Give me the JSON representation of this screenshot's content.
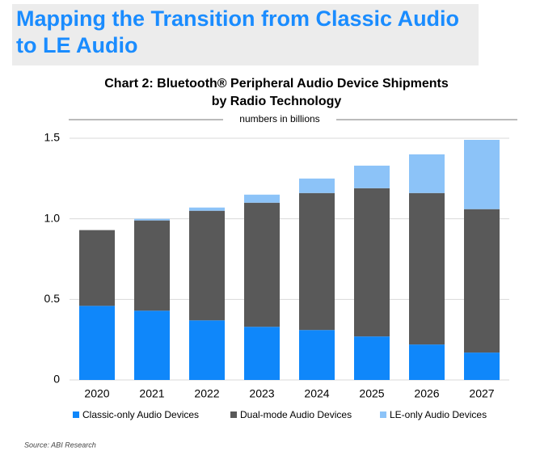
{
  "header": {
    "title": [
      "Mapping the Transition from Classic Audio",
      "to LE Audio"
    ]
  },
  "source": "Source: ABI Research",
  "chart_data": {
    "type": "stacked-bar",
    "title": [
      "Chart 2: Bluetooth® Peripheral Audio Device Shipments",
      "by Radio Technology"
    ],
    "subtitle": "numbers  in billions",
    "categories": [
      "2020",
      "2021",
      "2022",
      "2023",
      "2024",
      "2025",
      "2026",
      "2027"
    ],
    "series": [
      {
        "name": "Classic-only Audio Devices",
        "color": "#0f87fa",
        "values": [
          0.46,
          0.43,
          0.37,
          0.33,
          0.31,
          0.27,
          0.22,
          0.17
        ]
      },
      {
        "name": "Dual-mode Audio Devices",
        "color": "#595959",
        "values": [
          0.47,
          0.56,
          0.68,
          0.77,
          0.85,
          0.92,
          0.94,
          0.89
        ]
      },
      {
        "name": "LE-only Audio Devices",
        "color": "#8cc3f8",
        "values": [
          0,
          0.01,
          0.02,
          0.05,
          0.09,
          0.14,
          0.24,
          0.43
        ]
      }
    ],
    "ylim": [
      0,
      1.5
    ],
    "yticks": [
      0,
      0.5,
      {
        "value": 1,
        "label": "1.0"
      },
      1.5
    ],
    "grid": true,
    "legend": "bottom"
  }
}
